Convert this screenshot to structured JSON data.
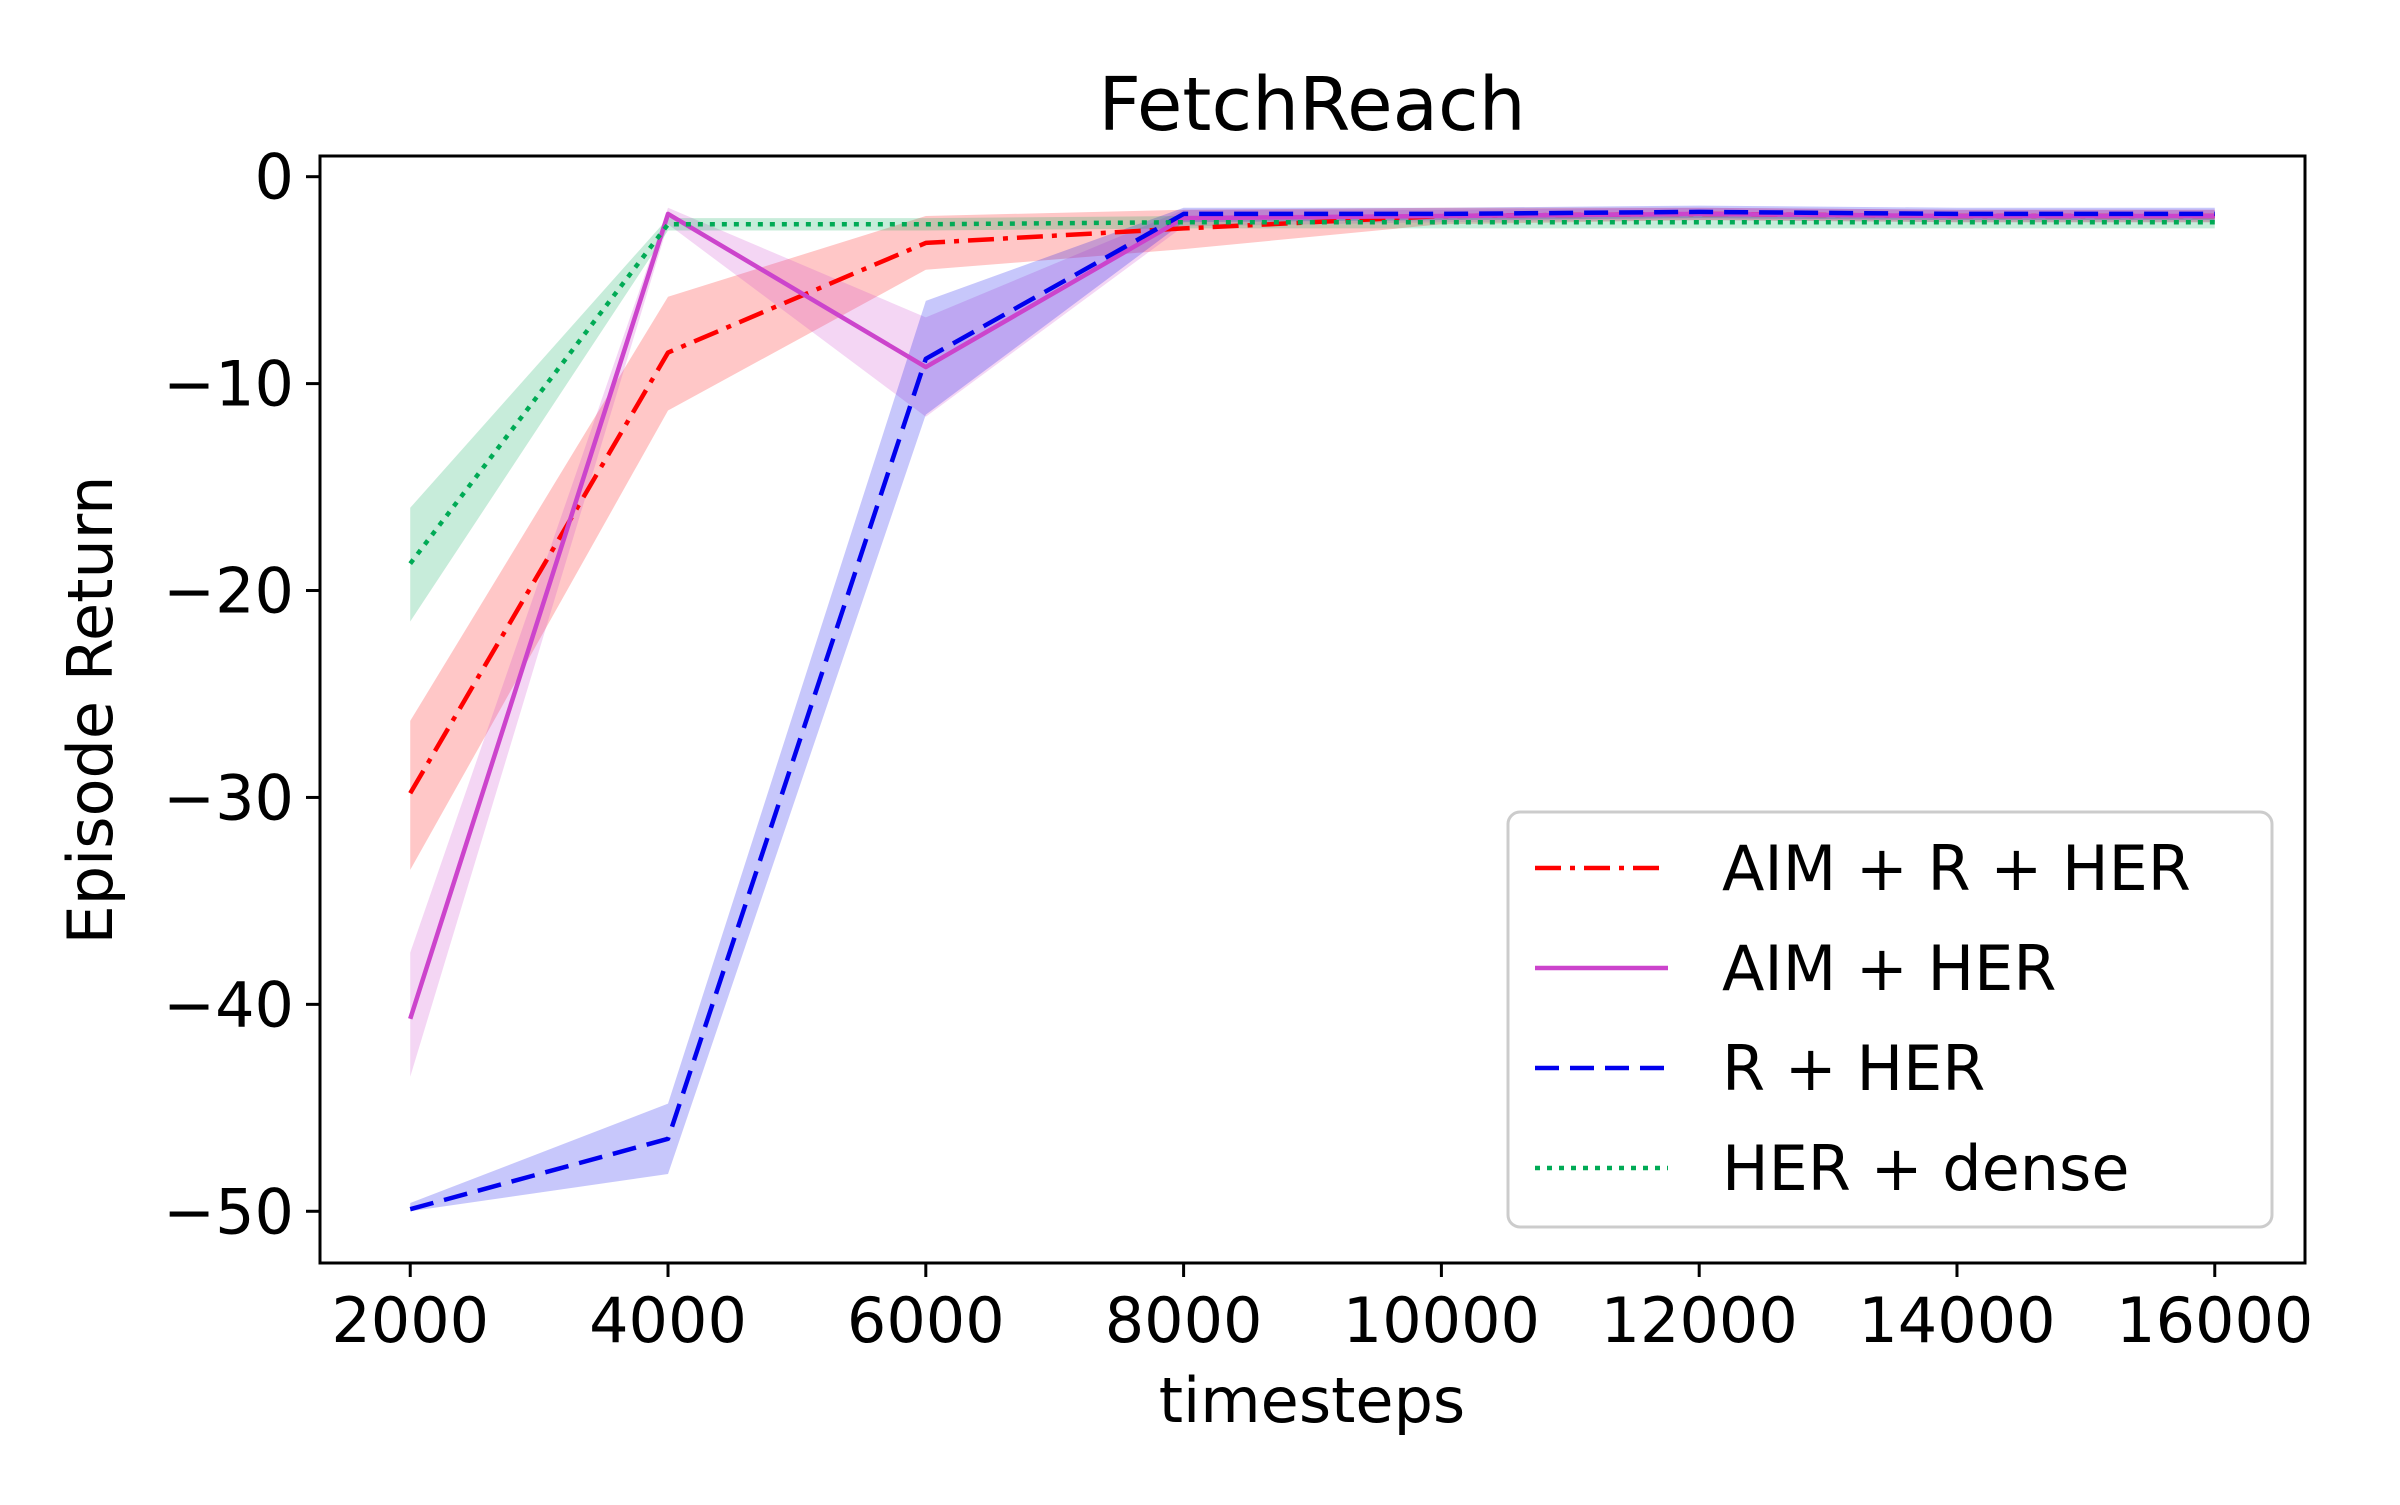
{
  "chart_data": {
    "type": "line",
    "title": "FetchReach",
    "xlabel": "timesteps",
    "ylabel": "Episode Return",
    "xlim": [
      1300,
      16700
    ],
    "ylim": [
      -52.5,
      1
    ],
    "xticks": [
      2000,
      4000,
      6000,
      8000,
      10000,
      12000,
      14000,
      16000
    ],
    "yticks": [
      0,
      -10,
      -20,
      -30,
      -40,
      -50
    ],
    "ytick_labels": [
      "0",
      "−10",
      "−20",
      "−30",
      "−40",
      "−50"
    ],
    "grid": false,
    "legend_position": "lower-right",
    "x": [
      2000,
      4000,
      6000,
      8000,
      10000,
      12000,
      14000,
      16000
    ],
    "series": [
      {
        "name": "AIM + R + HER",
        "color": "#ff0000",
        "linestyle": "dashdot",
        "values": [
          -29.8,
          -8.5,
          -3.2,
          -2.5,
          -1.9,
          -1.8,
          -1.9,
          -1.9
        ],
        "lower": [
          -33.5,
          -11.3,
          -4.5,
          -3.5,
          -2.3,
          -2.1,
          -2.2,
          -2.2
        ],
        "upper": [
          -26.3,
          -5.8,
          -1.9,
          -1.6,
          -1.5,
          -1.5,
          -1.6,
          -1.6
        ]
      },
      {
        "name": "AIM + HER",
        "color": "#cc44cc",
        "linestyle": "solid",
        "values": [
          -40.7,
          -1.8,
          -9.2,
          -2.0,
          -1.9,
          -1.8,
          -1.9,
          -1.9
        ],
        "lower": [
          -43.5,
          -2.3,
          -11.6,
          -2.4,
          -2.2,
          -2.1,
          -2.2,
          -2.2
        ],
        "upper": [
          -37.5,
          -1.5,
          -6.8,
          -1.6,
          -1.6,
          -1.5,
          -1.6,
          -1.6
        ]
      },
      {
        "name": "R + HER",
        "color": "#0000ee",
        "linestyle": "dashed",
        "values": [
          -49.9,
          -46.5,
          -8.8,
          -1.8,
          -1.8,
          -1.7,
          -1.8,
          -1.8
        ],
        "lower": [
          -50.0,
          -48.2,
          -11.5,
          -2.2,
          -2.1,
          -2.0,
          -2.1,
          -2.1
        ],
        "upper": [
          -49.6,
          -44.8,
          -6.0,
          -1.5,
          -1.5,
          -1.4,
          -1.5,
          -1.5
        ]
      },
      {
        "name": "HER + dense",
        "color": "#00aa55",
        "linestyle": "dotted",
        "values": [
          -18.7,
          -2.3,
          -2.3,
          -2.2,
          -2.2,
          -2.2,
          -2.2,
          -2.2
        ],
        "lower": [
          -21.5,
          -2.6,
          -2.6,
          -2.5,
          -2.5,
          -2.5,
          -2.5,
          -2.5
        ],
        "upper": [
          -16.0,
          -2.0,
          -2.0,
          -1.9,
          -1.9,
          -1.9,
          -1.9,
          -1.9
        ]
      }
    ]
  }
}
